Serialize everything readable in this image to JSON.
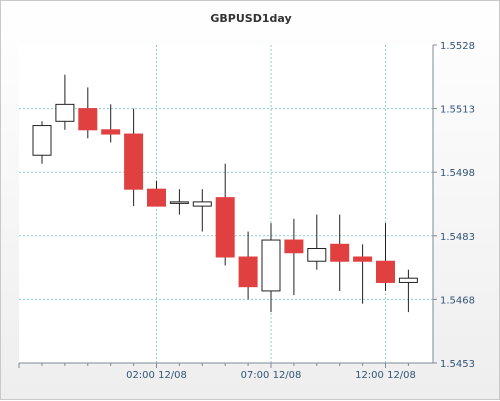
{
  "chart_data": {
    "type": "candlestick",
    "title": "GBPUSD1day",
    "xlabel": "",
    "ylabel": "",
    "ylim": [
      1.5453,
      1.5528
    ],
    "yticks": [
      "1.5453",
      "1.5468",
      "1.5483",
      "1.5498",
      "1.5513",
      "1.5528"
    ],
    "xticks": [
      {
        "label": "02:00 12/08",
        "index": 5
      },
      {
        "label": "07:00 12/08",
        "index": 10
      },
      {
        "label": "12:00 12/08",
        "index": 15
      }
    ],
    "grid": true,
    "candles": [
      {
        "open": 1.5502,
        "high": 1.551,
        "low": 1.55,
        "close": 1.5509
      },
      {
        "open": 1.551,
        "high": 1.5521,
        "low": 1.5508,
        "close": 1.5514
      },
      {
        "open": 1.5513,
        "high": 1.5518,
        "low": 1.5506,
        "close": 1.5508
      },
      {
        "open": 1.5508,
        "high": 1.5514,
        "low": 1.5505,
        "close": 1.5507
      },
      {
        "open": 1.5507,
        "high": 1.5513,
        "low": 1.549,
        "close": 1.5494
      },
      {
        "open": 1.5494,
        "high": 1.5496,
        "low": 1.549,
        "close": 1.549
      },
      {
        "open": 1.5491,
        "high": 1.5494,
        "low": 1.5488,
        "close": 1.5491
      },
      {
        "open": 1.549,
        "high": 1.5494,
        "low": 1.5484,
        "close": 1.5491
      },
      {
        "open": 1.5492,
        "high": 1.55,
        "low": 1.5476,
        "close": 1.5478
      },
      {
        "open": 1.5478,
        "high": 1.5484,
        "low": 1.5468,
        "close": 1.5471
      },
      {
        "open": 1.547,
        "high": 1.5486,
        "low": 1.5465,
        "close": 1.5482
      },
      {
        "open": 1.5482,
        "high": 1.5487,
        "low": 1.5469,
        "close": 1.5479
      },
      {
        "open": 1.5477,
        "high": 1.5488,
        "low": 1.5475,
        "close": 1.548
      },
      {
        "open": 1.5481,
        "high": 1.5488,
        "low": 1.547,
        "close": 1.5477
      },
      {
        "open": 1.5478,
        "high": 1.5481,
        "low": 1.5467,
        "close": 1.5477
      },
      {
        "open": 1.5477,
        "high": 1.5486,
        "low": 1.547,
        "close": 1.5472
      },
      {
        "open": 1.5472,
        "high": 1.5475,
        "low": 1.5465,
        "close": 1.5473
      }
    ],
    "colors": {
      "up_fill": "#ffffff",
      "down_fill": "#e04040",
      "candle_stroke": "#222222",
      "grid": "#8ccdcd",
      "axis": "#7f8a96",
      "plot_bg": "#ffffff"
    }
  }
}
